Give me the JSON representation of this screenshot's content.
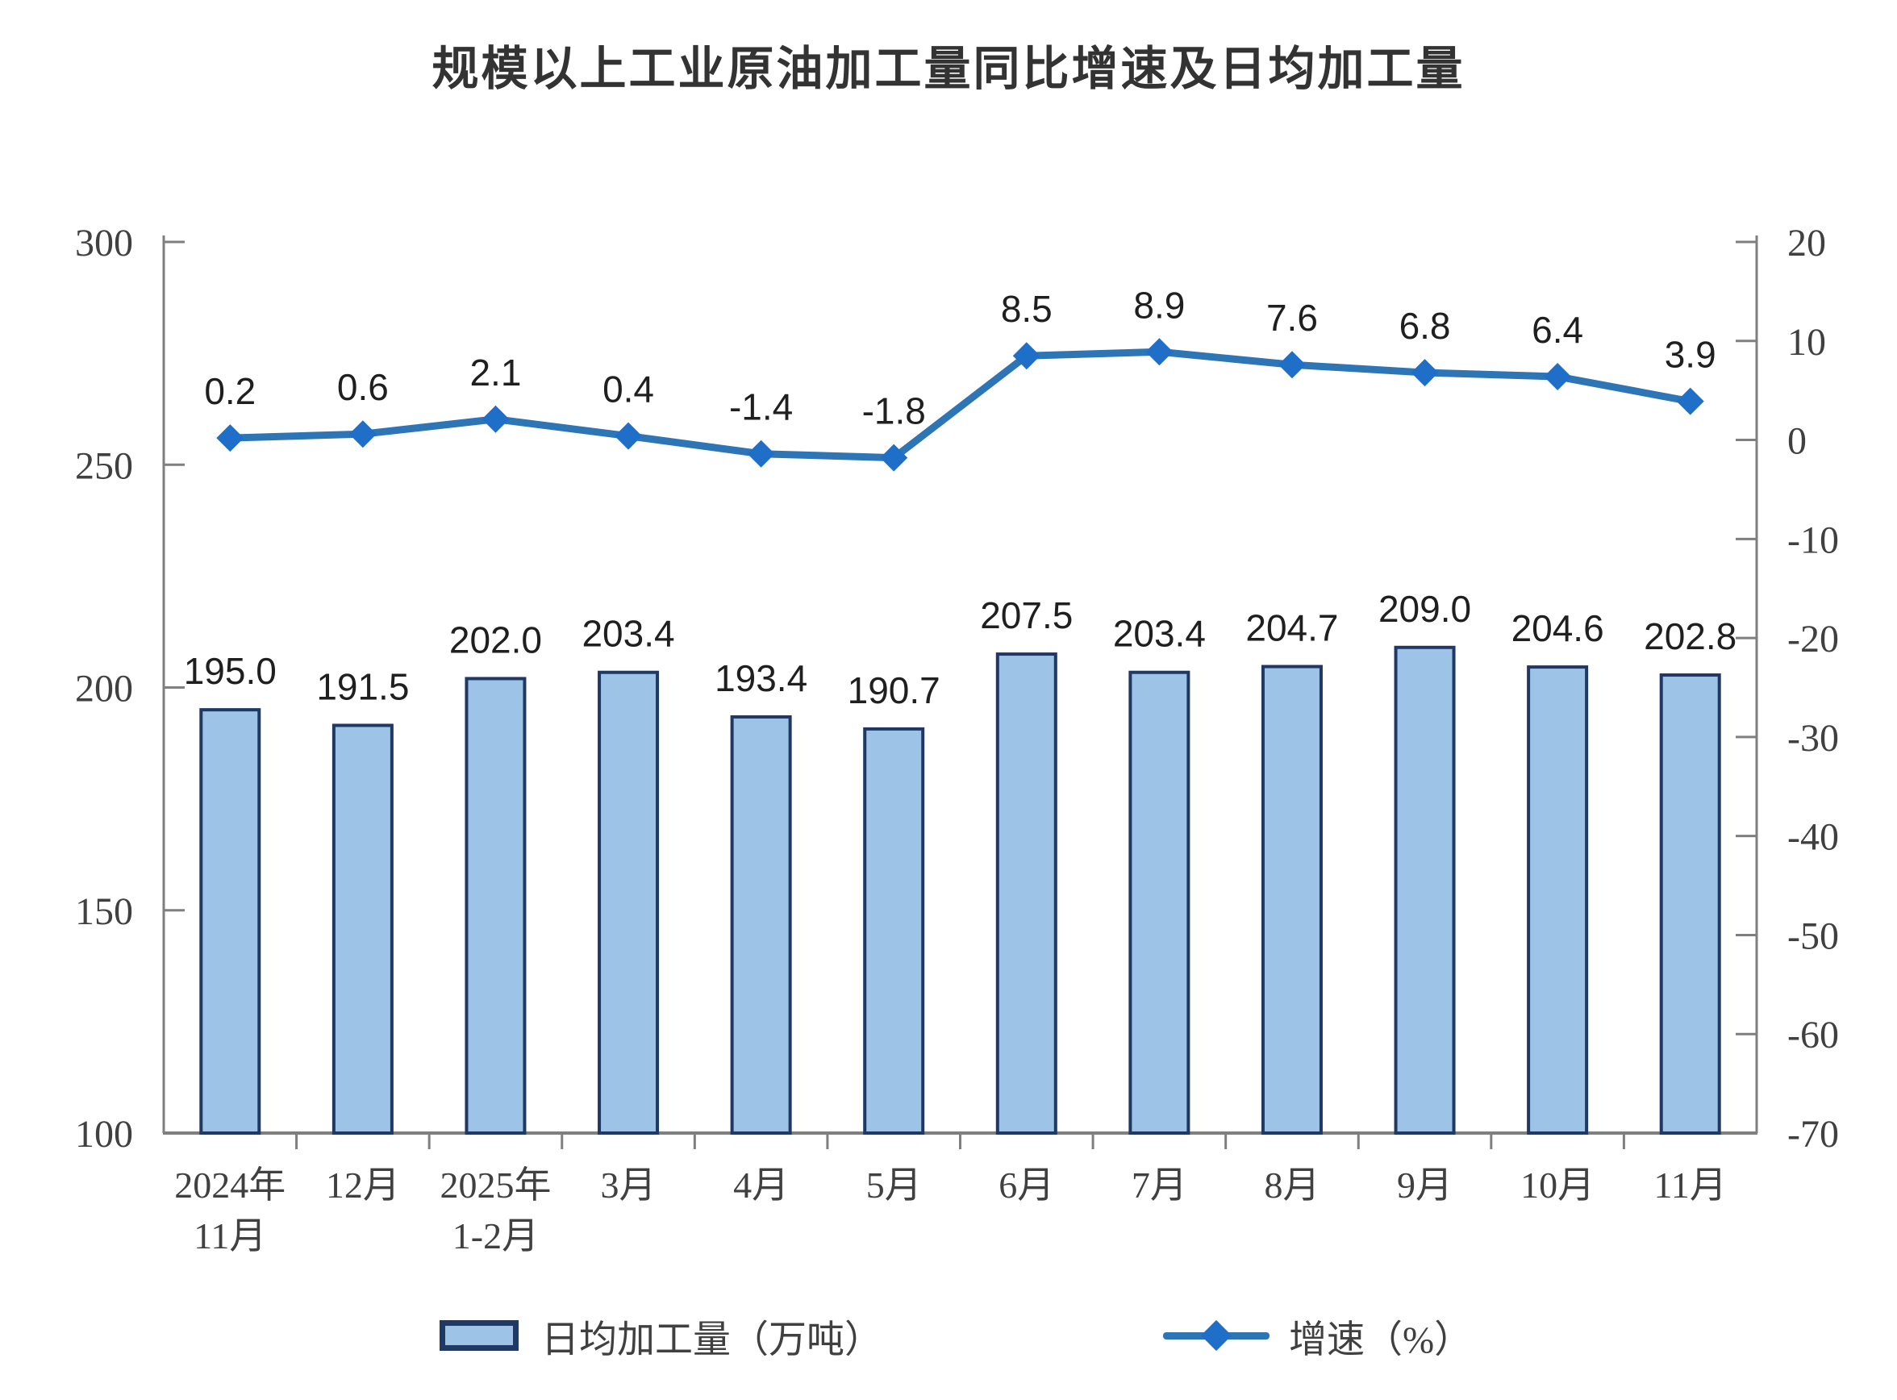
{
  "chart_data": {
    "type": "combo_bar_line",
    "title": "规模以上工业原油加工量同比增速及日均加工量",
    "categories": [
      "2024年11月",
      "12月",
      "2025年1-2月",
      "3月",
      "4月",
      "5月",
      "6月",
      "7月",
      "8月",
      "9月",
      "10月",
      "11月"
    ],
    "x_tick_lines": [
      [
        "2024年",
        "11月"
      ],
      [
        "12月"
      ],
      [
        "2025年",
        "1-2月"
      ],
      [
        "3月"
      ],
      [
        "4月"
      ],
      [
        "5月"
      ],
      [
        "6月"
      ],
      [
        "7月"
      ],
      [
        "8月"
      ],
      [
        "9月"
      ],
      [
        "10月"
      ],
      [
        "11月"
      ]
    ],
    "series": [
      {
        "name": "日均加工量（万吨）",
        "type": "bar",
        "axis": "left",
        "values": [
          195.0,
          191.5,
          202.0,
          203.4,
          193.4,
          190.7,
          207.5,
          203.4,
          204.7,
          209.0,
          204.6,
          202.8
        ],
        "labels": [
          "195.0",
          "191.5",
          "202.0",
          "203.4",
          "193.4",
          "190.7",
          "207.5",
          "203.4",
          "204.7",
          "209.0",
          "204.6",
          "202.8"
        ],
        "fill": "#9DC3E6",
        "border": "#1F3864"
      },
      {
        "name": "增速（%）",
        "type": "line",
        "axis": "right",
        "values": [
          0.2,
          0.6,
          2.1,
          0.4,
          -1.4,
          -1.8,
          8.5,
          8.9,
          7.6,
          6.8,
          6.4,
          3.9
        ],
        "labels": [
          "0.2",
          "0.6",
          "2.1",
          "0.4",
          "-1.4",
          "-1.8",
          "8.5",
          "8.9",
          "7.6",
          "6.8",
          "6.4",
          "3.9"
        ],
        "color": "#2E75B6",
        "marker": "diamond",
        "marker_color": "#1F6FC9"
      }
    ],
    "left_axis": {
      "min": 100,
      "max": 300,
      "ticks": [
        300,
        250,
        200,
        150,
        100
      ]
    },
    "right_axis": {
      "min": -70,
      "max": 20,
      "ticks": [
        20,
        10,
        0,
        -10,
        -20,
        -30,
        -40,
        -50,
        -60,
        -70
      ]
    },
    "legend": {
      "position": "bottom",
      "items": [
        "日均加工量（万吨）",
        "增速（%）"
      ]
    },
    "grid": false,
    "axis_color": "#7F7F7F",
    "tick_text_color": "#404040",
    "data_label_color": "#1F1F1F"
  }
}
